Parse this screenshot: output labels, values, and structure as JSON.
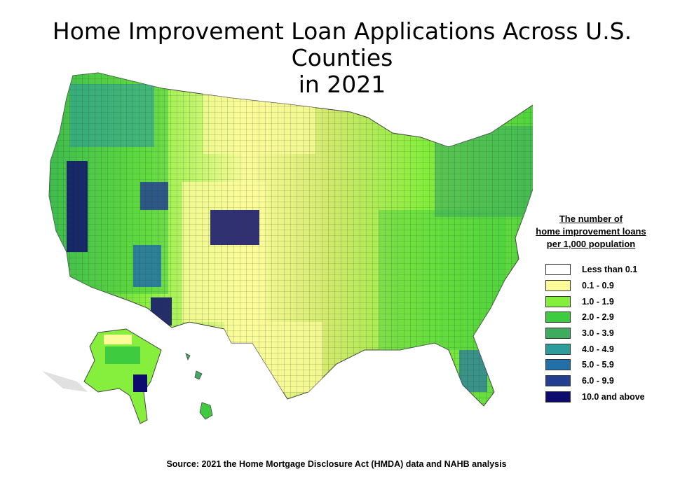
{
  "title_line1": "Home Improvement Loan Applications Across U.S. Counties",
  "title_line2": "in 2021",
  "legend": {
    "title_line1": "The number of",
    "title_line2": "home improvement loans",
    "title_line3": "per 1,000 population",
    "items": [
      {
        "label": "Less than 0.1",
        "color": "#ffffff"
      },
      {
        "label": "0.1 - 0.9",
        "color": "#fbfb99"
      },
      {
        "label": "1.0 - 1.9",
        "color": "#86ee3c"
      },
      {
        "label": "2.0 - 2.9",
        "color": "#3fcb3f"
      },
      {
        "label": "3.0 - 3.9",
        "color": "#3eab5f"
      },
      {
        "label": "4.0 - 4.9",
        "color": "#2f9c9c"
      },
      {
        "label": "5.0 - 5.9",
        "color": "#2370a8"
      },
      {
        "label": "6.0 - 9.9",
        "color": "#243f90"
      },
      {
        "label": "10.0 and above",
        "color": "#0d0c6e"
      }
    ]
  },
  "source": "Source: 2021 the Home Mortgage Disclosure Act (HMDA) data and NAHB analysis"
}
